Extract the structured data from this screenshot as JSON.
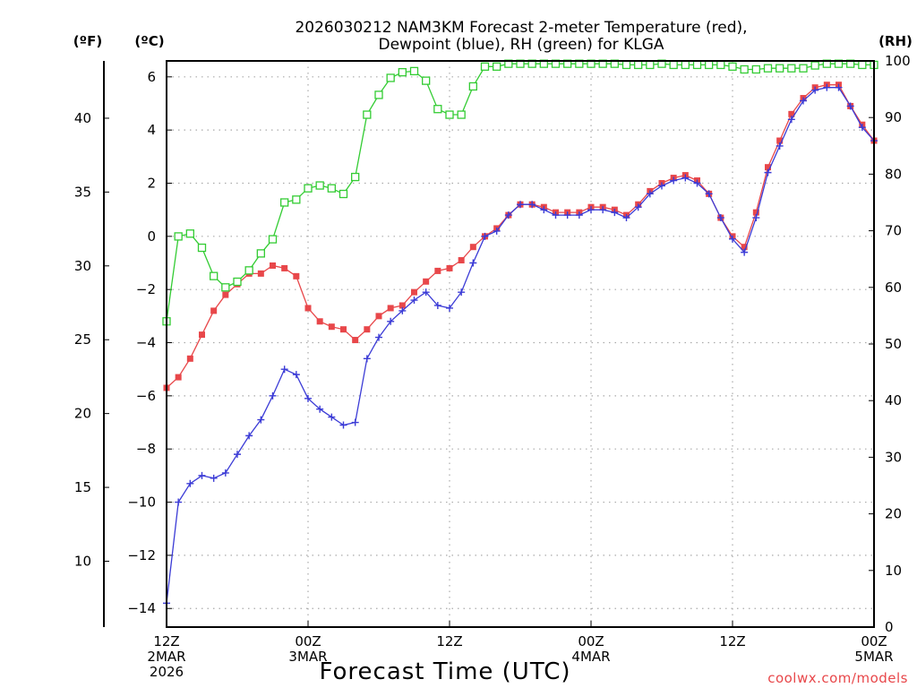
{
  "chart_data": {
    "type": "line",
    "title_line1": "2026030212 NAM3KM Forecast 2-meter Temperature (red),",
    "title_line2": "Dewpoint (blue), RH (green) for KLGA",
    "xlabel": "Forecast Time (UTC)",
    "credit": "coolwx.com/models",
    "unit_f": "(ºF)",
    "unit_c": "(ºC)",
    "unit_rh": "(RH)",
    "x_range_hours": [
      0,
      60
    ],
    "y_celsius_range": [
      -14.7,
      6.6
    ],
    "y_rh_range": [
      0,
      100
    ],
    "y_celsius_ticks": [
      "6",
      "4",
      "2",
      "0",
      "-2",
      "-4",
      "-6",
      "-8",
      "-10",
      "-12",
      "-14"
    ],
    "y_fahrenheit_ticks": [
      "40",
      "35",
      "30",
      "25",
      "20",
      "15",
      "10"
    ],
    "y_rh_ticks": [
      "100",
      "90",
      "80",
      "70",
      "60",
      "50",
      "40",
      "30",
      "20",
      "10",
      "0"
    ],
    "x_ticks": [
      {
        "hour": 0,
        "line1": "12Z",
        "line2": "2MAR",
        "line3": "2026"
      },
      {
        "hour": 12,
        "line1": "00Z",
        "line2": "3MAR",
        "line3": ""
      },
      {
        "hour": 24,
        "line1": "12Z",
        "line2": "",
        "line3": ""
      },
      {
        "hour": 36,
        "line1": "00Z",
        "line2": "4MAR",
        "line3": ""
      },
      {
        "hour": 48,
        "line1": "12Z",
        "line2": "",
        "line3": ""
      },
      {
        "hour": 60,
        "line1": "00Z",
        "line2": "5MAR",
        "line3": ""
      }
    ],
    "series": [
      {
        "name": "Temperature",
        "units": "C",
        "color": "#e8474a",
        "marker": "square-filled",
        "values": [
          -5.7,
          -5.3,
          -4.6,
          -3.7,
          -2.8,
          -2.2,
          -1.8,
          -1.4,
          -1.4,
          -1.1,
          -1.2,
          -1.5,
          -2.7,
          -3.2,
          -3.4,
          -3.5,
          -3.9,
          -3.5,
          -3.0,
          -2.7,
          -2.6,
          -2.1,
          -1.7,
          -1.3,
          -1.2,
          -0.9,
          -0.4,
          0.0,
          0.3,
          0.8,
          1.2,
          1.2,
          1.1,
          0.9,
          0.9,
          0.9,
          1.1,
          1.1,
          1.0,
          0.8,
          1.2,
          1.7,
          2.0,
          2.2,
          2.3,
          2.1,
          1.6,
          0.7,
          0.0,
          -0.4,
          0.9,
          2.6,
          3.6,
          4.6,
          5.2,
          5.6,
          5.7,
          5.7,
          4.9,
          4.2,
          3.6
        ]
      },
      {
        "name": "Dewpoint",
        "units": "C",
        "color": "#3b3bd6",
        "marker": "plus",
        "values": [
          -13.8,
          -10.0,
          -9.3,
          -9.0,
          -9.1,
          -8.9,
          -8.2,
          -7.5,
          -6.9,
          -6.0,
          -5.0,
          -5.2,
          -6.1,
          -6.5,
          -6.8,
          -7.1,
          -7.0,
          -4.6,
          -3.8,
          -3.2,
          -2.8,
          -2.4,
          -2.1,
          -2.6,
          -2.7,
          -2.1,
          -1.0,
          0.0,
          0.2,
          0.8,
          1.2,
          1.2,
          1.0,
          0.8,
          0.8,
          0.8,
          1.0,
          1.0,
          0.9,
          0.7,
          1.1,
          1.6,
          1.9,
          2.1,
          2.2,
          2.0,
          1.6,
          0.7,
          -0.1,
          -0.6,
          0.7,
          2.4,
          3.4,
          4.4,
          5.1,
          5.5,
          5.6,
          5.6,
          4.9,
          4.1,
          3.6
        ]
      },
      {
        "name": "RH",
        "units": "%",
        "color": "#33cc33",
        "marker": "square-open",
        "values": [
          54,
          69,
          69.5,
          67,
          62,
          60,
          61,
          63,
          66,
          68.5,
          75,
          75.5,
          77.5,
          78,
          77.5,
          76.5,
          79.5,
          90.5,
          94,
          97,
          98,
          98.2,
          96.5,
          91.5,
          90.5,
          90.5,
          95.5,
          99,
          99,
          99.5,
          99.5,
          99.5,
          99.5,
          99.5,
          99.5,
          99.5,
          99.5,
          99.5,
          99.5,
          99.3,
          99.3,
          99.3,
          99.5,
          99.3,
          99.3,
          99.3,
          99.3,
          99.3,
          99,
          98.5,
          98.5,
          98.7,
          98.7,
          98.7,
          98.7,
          99.2,
          99.5,
          99.5,
          99.5,
          99.3,
          99.3
        ]
      }
    ]
  }
}
